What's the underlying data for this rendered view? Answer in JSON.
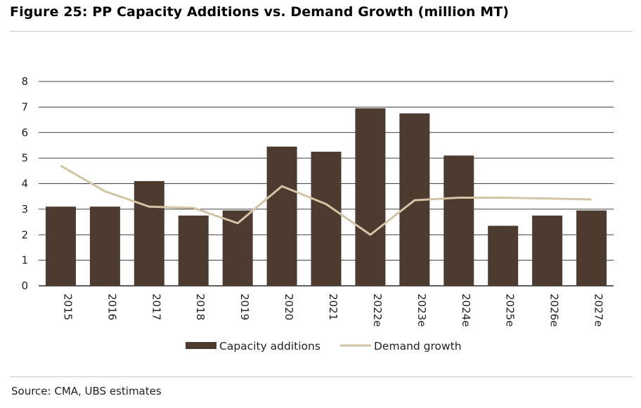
{
  "title": "Figure 25: PP Capacity Additions vs. Demand Growth (million MT)",
  "source": "Source: CMA, UBS estimates",
  "colors": {
    "bar": "#4e3b30",
    "line": "#d2c4a4",
    "grid": "#000000"
  },
  "chart_data": {
    "type": "bar",
    "title": "Figure 25: PP Capacity Additions vs. Demand Growth (million MT)",
    "xlabel": "",
    "ylabel": "",
    "ylim": [
      0,
      8
    ],
    "yticks": [
      0,
      1,
      2,
      3,
      4,
      5,
      6,
      7,
      8
    ],
    "grid": true,
    "legend": "bottom",
    "categories": [
      "2015",
      "2016",
      "2017",
      "2018",
      "2019",
      "2020",
      "2021",
      "2022e",
      "2023e",
      "2024e",
      "2025e",
      "2026e",
      "2027e"
    ],
    "series": [
      {
        "name": "Capacity additions",
        "type": "bar",
        "values": [
          3.1,
          3.1,
          4.1,
          2.75,
          2.95,
          5.45,
          5.25,
          6.95,
          6.75,
          5.1,
          2.35,
          2.75,
          2.95
        ]
      },
      {
        "name": "Demand growth",
        "type": "line",
        "values": [
          4.7,
          3.7,
          3.1,
          3.05,
          2.45,
          3.9,
          3.2,
          2.0,
          3.35,
          3.45,
          3.45,
          3.42,
          3.38
        ]
      }
    ]
  }
}
